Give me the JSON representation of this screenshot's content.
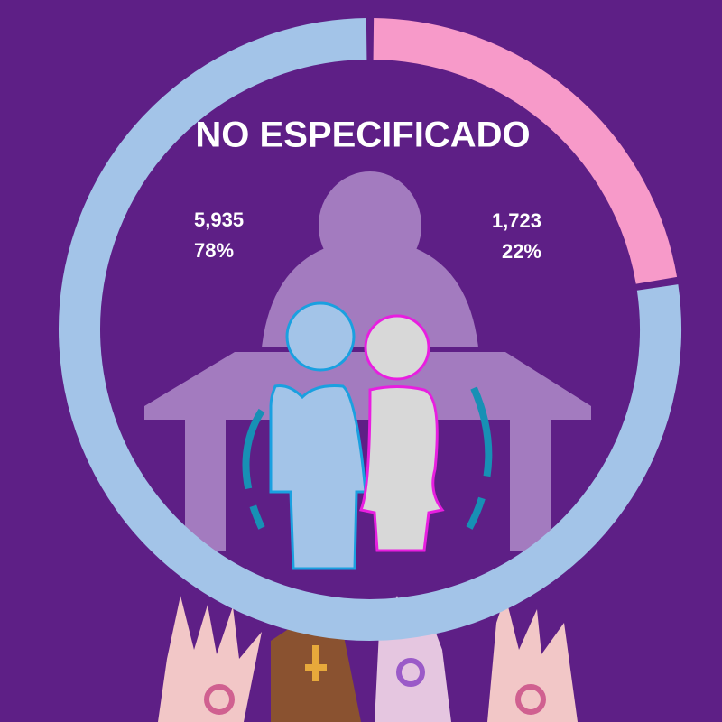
{
  "chart_data": {
    "type": "donut",
    "title": "NO ESPECIFICADO",
    "values": [
      5935,
      1723
    ],
    "value_labels": [
      "5,935",
      "1,723"
    ],
    "percent_labels": [
      "78%",
      "22%"
    ],
    "colors": [
      "#a3c4e8",
      "#f79ac9"
    ]
  }
}
